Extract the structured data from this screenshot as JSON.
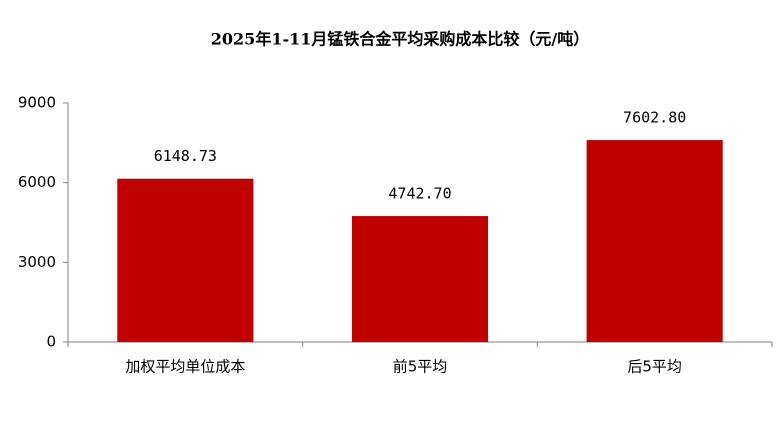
{
  "chart_data": {
    "type": "bar",
    "title": "2025年1-11月锰铁合金平均采购成本比较（元/吨）",
    "categories": [
      "加权平均单位成本",
      "前5平均",
      "后5平均"
    ],
    "values": [
      6148.73,
      4742.7,
      7602.8
    ],
    "value_labels": [
      "6148.73",
      "4742.70",
      "7602.80"
    ],
    "color": "#c00000",
    "ylim": [
      0,
      9000
    ],
    "yticks": [
      0,
      3000,
      6000,
      9000
    ],
    "grid": false
  }
}
